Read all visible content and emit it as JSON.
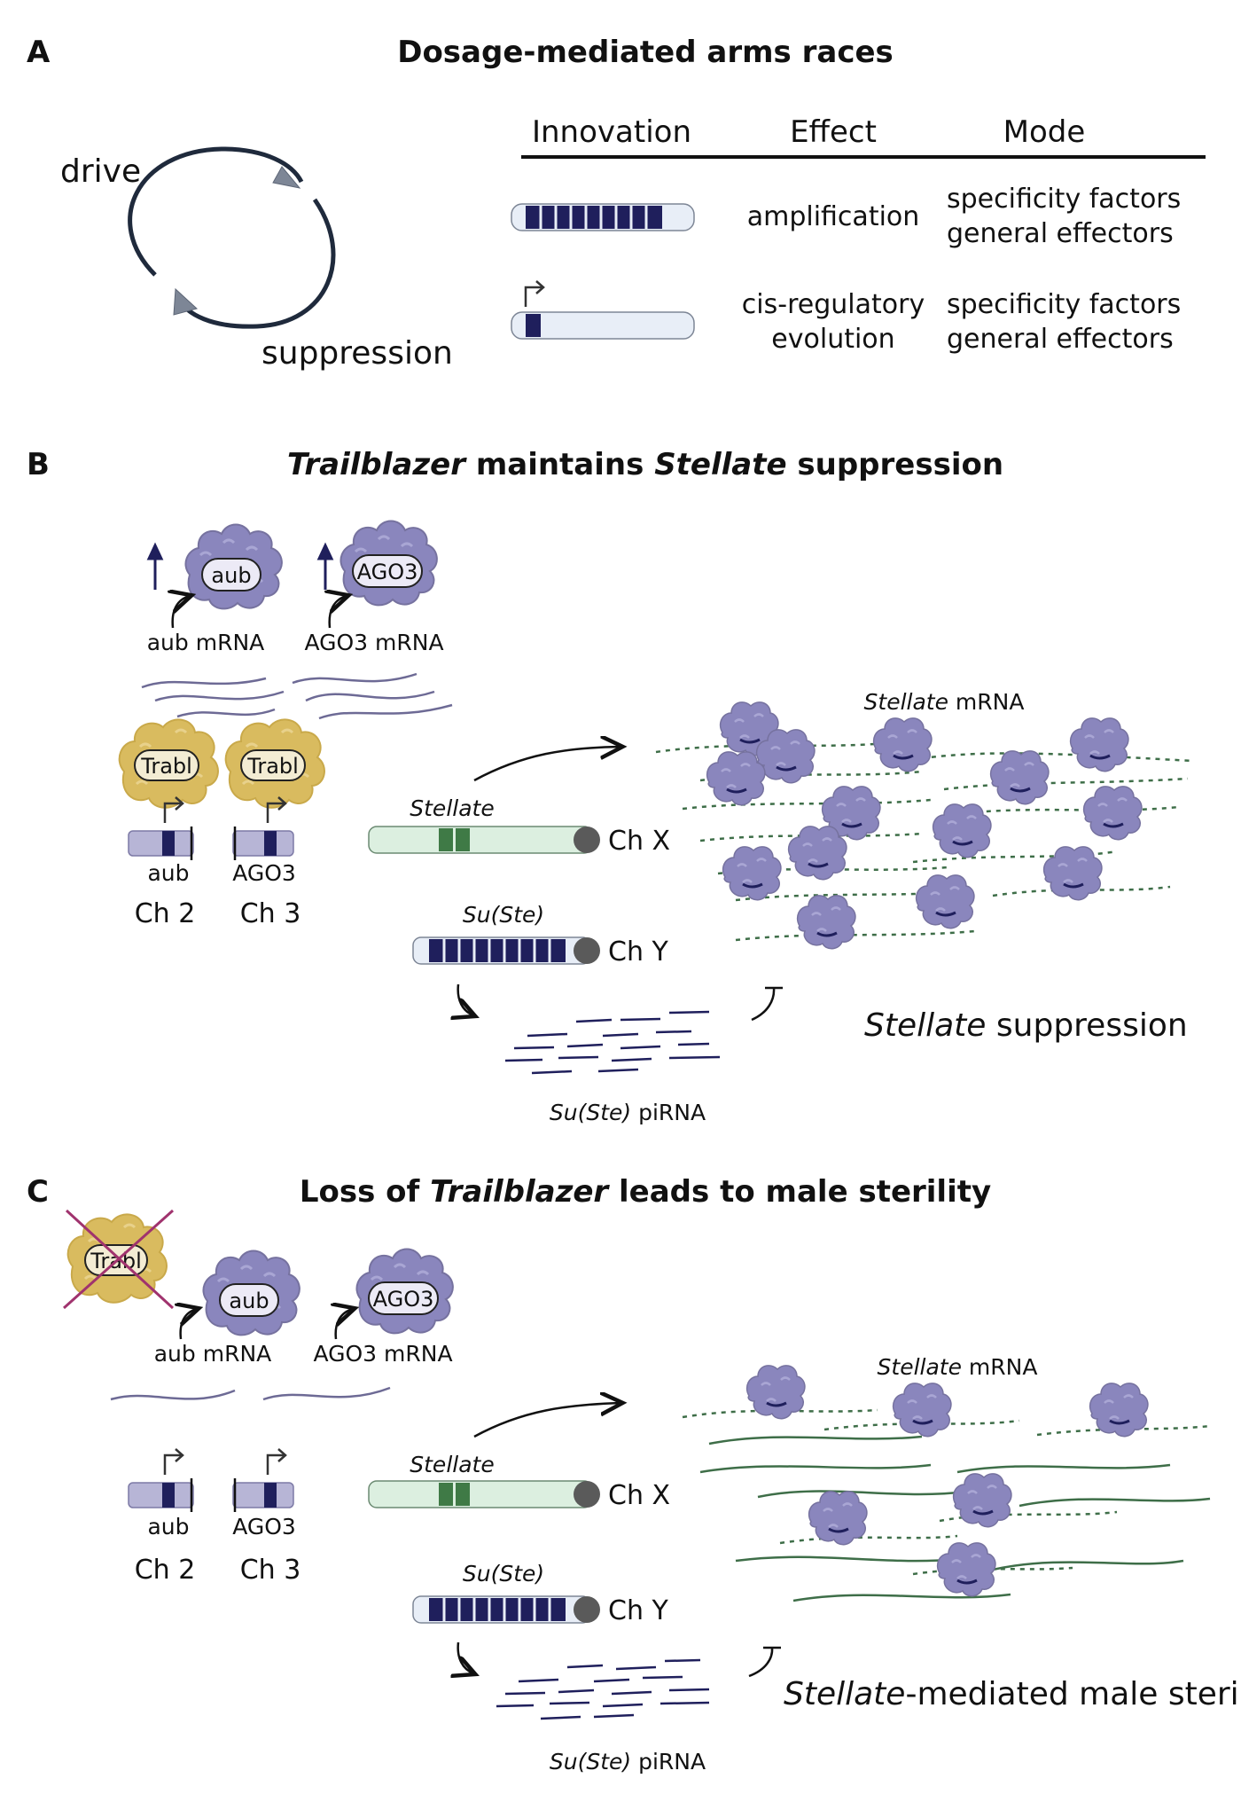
{
  "panelA": {
    "letter": "A",
    "title": "Dosage-mediated arms races",
    "cycle": {
      "drive": "drive",
      "suppression": "suppression"
    },
    "table": {
      "headers": [
        "Innovation",
        "Effect",
        "Mode"
      ],
      "rows": [
        {
          "effect": [
            "amplification"
          ],
          "mode": [
            "specificity factors",
            "general effectors"
          ]
        },
        {
          "effect": [
            "cis-regulatory",
            "evolution"
          ],
          "mode": [
            "specificity factors",
            "general effectors"
          ]
        }
      ]
    }
  },
  "panelB": {
    "letter": "B",
    "title_parts": [
      "Trailblazer",
      " maintains ",
      "Stellate",
      " suppression"
    ],
    "proteins": [
      "aub",
      "AGO3"
    ],
    "mrna_labels": [
      "aub mRNA",
      "AGO3 mRNA"
    ],
    "trabl": "Trabl",
    "genes": [
      "aub",
      "AGO3"
    ],
    "chromosomes": [
      "Ch 2",
      "Ch 3"
    ],
    "stellate_gene": "Stellate",
    "ch_x": "Ch X",
    "suste_gene": "Su(Ste)",
    "ch_y": "Ch Y",
    "stellate_mrna": {
      "italic": "Stellate",
      "rest": " mRNA"
    },
    "outcome": {
      "italic": "Stellate",
      "rest": " suppression"
    },
    "pirna": {
      "italic": "Su(Ste)",
      "rest": " piRNA"
    }
  },
  "panelC": {
    "letter": "C",
    "title_parts": [
      "Loss of ",
      "Trailblazer",
      " leads to male sterility"
    ],
    "trabl": "Trabl",
    "proteins": [
      "aub",
      "AGO3"
    ],
    "mrna_labels": [
      "aub mRNA",
      "AGO3 mRNA"
    ],
    "genes": [
      "aub",
      "AGO3"
    ],
    "chromosomes": [
      "Ch 2",
      "Ch 3"
    ],
    "stellate_gene": "Stellate",
    "ch_x": "Ch X",
    "suste_gene": "Su(Ste)",
    "ch_y": "Ch Y",
    "stellate_mrna": {
      "italic": "Stellate",
      "rest": " mRNA"
    },
    "outcome": {
      "italic": "Stellate",
      "rest": "-mediated male sterility"
    },
    "pirna": {
      "italic": "Su(Ste)",
      "rest": " piRNA"
    }
  },
  "colors": {
    "navy": "#1f1f5c",
    "protein": "#8a86bd",
    "trabl": "#d9bb5f",
    "chromosome_light": "#e8eef7",
    "chromosome_purple": "#b7b5d6",
    "stellate_band": "#3f7a46",
    "stellate_body": "#dcefe0",
    "mrna_dash": "#3e6e48",
    "cross": "#a0336e"
  }
}
